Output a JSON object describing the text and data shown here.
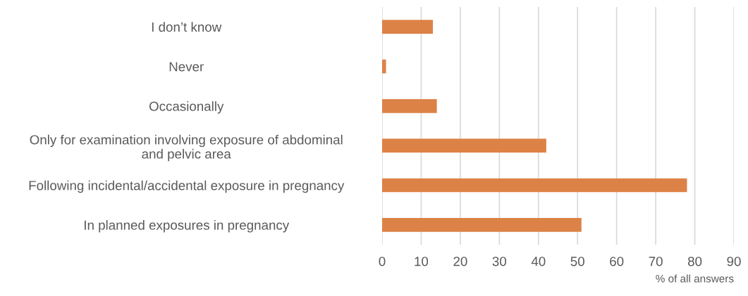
{
  "chart_data": {
    "type": "bar",
    "orientation": "horizontal",
    "categories": [
      "I don’t know",
      "Never",
      "Occasionally",
      "Only for examination involving exposure of abdominal\nand pelvic area",
      "Following incidental/accidental exposure in pregnancy",
      "In planned exposures in pregnancy"
    ],
    "values": [
      13,
      1,
      14,
      42,
      78,
      51
    ],
    "color": "#dd8246",
    "xlim": [
      0,
      90
    ],
    "xticks": [
      0,
      10,
      20,
      30,
      40,
      50,
      60,
      70,
      80,
      90
    ],
    "xlabel": "% of all answers",
    "grid": "x"
  }
}
